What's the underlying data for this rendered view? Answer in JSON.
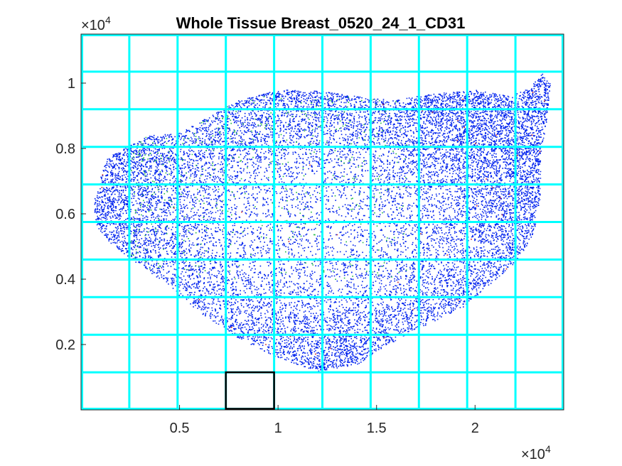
{
  "chart_data": {
    "type": "scatter",
    "title": "Whole Tissue Breast_0520_24_1_CD31",
    "xlabel": "",
    "ylabel": "",
    "xlim": [
      0,
      24500
    ],
    "ylim": [
      0,
      11500
    ],
    "x_ticks": [
      5000,
      10000,
      15000,
      20000
    ],
    "x_tick_labels": [
      "0.5",
      "1",
      "1.5",
      "2"
    ],
    "y_ticks": [
      2000,
      4000,
      6000,
      8000,
      10000
    ],
    "y_tick_labels": [
      "0.2",
      "0.4",
      "0.6",
      "0.8",
      "1"
    ],
    "x_multiplier": {
      "base": "×10",
      "exp": "4"
    },
    "y_multiplier": {
      "base": "×10",
      "exp": "4"
    },
    "grid": {
      "color": "#00ffff",
      "x_lines": [
        2450,
        4900,
        7350,
        9800,
        12250,
        14700,
        17150,
        19600,
        22050
      ],
      "y_lines": [
        1150,
        2300,
        3450,
        4600,
        5750,
        6900,
        8050,
        9200,
        10350
      ]
    },
    "highlight_box": {
      "x0": 7350,
      "x1": 9800,
      "y0": 0,
      "y1": 1150,
      "color": "#000000"
    },
    "series_colors": {
      "nuclei": "#0022ee",
      "cd31": "#22bb44",
      "other": "#cc2222"
    },
    "tissue_outline": [
      [
        600,
        6300
      ],
      [
        900,
        7000
      ],
      [
        1300,
        7700
      ],
      [
        1800,
        7900
      ],
      [
        2400,
        8100
      ],
      [
        3400,
        8400
      ],
      [
        5000,
        8500
      ],
      [
        6200,
        8900
      ],
      [
        8000,
        9500
      ],
      [
        10000,
        9800
      ],
      [
        12000,
        9800
      ],
      [
        14000,
        9600
      ],
      [
        16000,
        9500
      ],
      [
        18000,
        9700
      ],
      [
        20000,
        9800
      ],
      [
        21800,
        9600
      ],
      [
        22800,
        9900
      ],
      [
        23400,
        10300
      ],
      [
        23800,
        10000
      ],
      [
        23600,
        8800
      ],
      [
        23300,
        7800
      ],
      [
        23300,
        6600
      ],
      [
        23000,
        5500
      ],
      [
        22200,
        4600
      ],
      [
        21000,
        4000
      ],
      [
        19500,
        3200
      ],
      [
        17500,
        2600
      ],
      [
        15500,
        2000
      ],
      [
        14000,
        1400
      ],
      [
        12000,
        1200
      ],
      [
        10000,
        1600
      ],
      [
        8000,
        2200
      ],
      [
        6000,
        3000
      ],
      [
        4000,
        4000
      ],
      [
        2600,
        4600
      ],
      [
        1500,
        5100
      ],
      [
        800,
        5600
      ]
    ]
  }
}
